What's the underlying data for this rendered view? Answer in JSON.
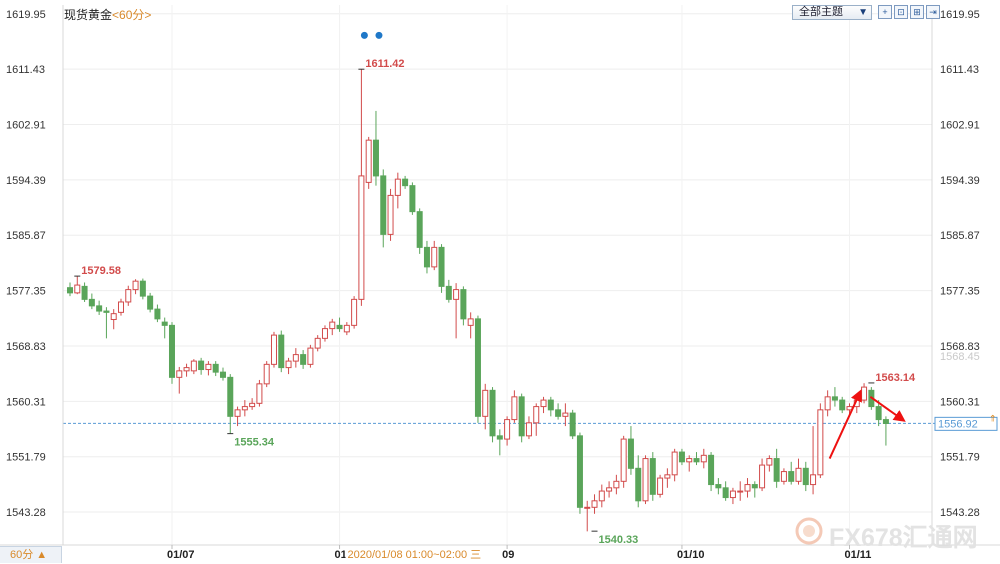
{
  "header": {
    "instrument": "现货黄金",
    "period_label": "<60分>",
    "topic_select": "全部主题"
  },
  "toolbar": {
    "buttons": [
      {
        "icon": "plus-icon",
        "glyph": "+"
      },
      {
        "icon": "fit-icon",
        "glyph": "⊡"
      },
      {
        "icon": "expand-icon",
        "glyph": "⊞"
      },
      {
        "icon": "scroll-end-icon",
        "glyph": "⇥"
      }
    ]
  },
  "footer": {
    "period_select": "60分 ▲",
    "crosshair_time": "2020/01/08 01:00~02:00 三"
  },
  "watermark": {
    "text": "FX678汇通网"
  },
  "chart_data": {
    "type": "candlestick",
    "y_axis": {
      "ticks": [
        1543.28,
        1551.79,
        1560.31,
        1568.83,
        1577.35,
        1585.87,
        1594.39,
        1602.91,
        1611.43,
        1619.95
      ],
      "right_labels": [
        "1543.28",
        "1551.79",
        "1560.31",
        "1568.83",
        "1577.35",
        "1585.87",
        "1594.39",
        "1602.91",
        "1611.43",
        "1619.95"
      ],
      "left_labels": [
        "1543.28",
        "1551.79",
        "1560.31",
        "1568.83",
        "1577.35",
        "1585.87",
        "1594.39",
        "1602.91",
        "1611.43",
        "1619.95"
      ],
      "ylim": [
        1538.2,
        1621.3
      ]
    },
    "x_axis": {
      "date_labels": [
        {
          "label": "01/07",
          "index": 14
        },
        {
          "label": "01",
          "index": 37
        },
        {
          "label": "09",
          "index": 60
        },
        {
          "label": "01/10",
          "index": 84
        },
        {
          "label": "01/11",
          "index": 107
        }
      ]
    },
    "current_price": 1556.92,
    "right_price_badge": "1568.45",
    "extremes": [
      {
        "label": "1579.58",
        "value": 1579.58,
        "index": 1,
        "type": "high"
      },
      {
        "label": "1555.34",
        "value": 1555.34,
        "index": 22,
        "type": "low"
      },
      {
        "label": "1611.42",
        "value": 1611.42,
        "index": 40,
        "type": "high"
      },
      {
        "label": "1540.33",
        "value": 1540.33,
        "index": 72,
        "type": "low"
      },
      {
        "label": "1563.14",
        "value": 1563.14,
        "index": 110,
        "type": "high"
      }
    ],
    "event_markers": [
      {
        "index": 40,
        "value": 1617.4
      },
      {
        "index": 42,
        "value": 1617.4
      }
    ],
    "colors": {
      "up": "#d24b4b",
      "down": "#5aa55a",
      "grid": "#eeeeee",
      "current_line": "#5a9bd5",
      "arrow": "#ee1111"
    },
    "candles": [
      {
        "o": 1577.8,
        "h": 1578.6,
        "l": 1576.5,
        "c": 1577.0
      },
      {
        "o": 1577.0,
        "h": 1579.6,
        "l": 1576.8,
        "c": 1578.2
      },
      {
        "o": 1578.0,
        "h": 1578.6,
        "l": 1575.6,
        "c": 1576.0
      },
      {
        "o": 1576.0,
        "h": 1576.9,
        "l": 1574.5,
        "c": 1575.0
      },
      {
        "o": 1575.0,
        "h": 1575.8,
        "l": 1573.6,
        "c": 1574.2
      },
      {
        "o": 1574.2,
        "h": 1574.8,
        "l": 1570.0,
        "c": 1574.0
      },
      {
        "o": 1572.9,
        "h": 1574.5,
        "l": 1571.4,
        "c": 1573.8
      },
      {
        "o": 1574.0,
        "h": 1576.1,
        "l": 1573.5,
        "c": 1575.6
      },
      {
        "o": 1575.6,
        "h": 1578.1,
        "l": 1575.0,
        "c": 1577.5
      },
      {
        "o": 1577.5,
        "h": 1579.1,
        "l": 1576.8,
        "c": 1578.8
      },
      {
        "o": 1578.8,
        "h": 1579.2,
        "l": 1576.0,
        "c": 1576.5
      },
      {
        "o": 1576.5,
        "h": 1577.0,
        "l": 1574.0,
        "c": 1574.5
      },
      {
        "o": 1574.5,
        "h": 1575.2,
        "l": 1572.5,
        "c": 1573.0
      },
      {
        "o": 1572.5,
        "h": 1573.2,
        "l": 1570.0,
        "c": 1572.0
      },
      {
        "o": 1572.0,
        "h": 1572.5,
        "l": 1563.0,
        "c": 1564.0
      },
      {
        "o": 1564.0,
        "h": 1565.6,
        "l": 1561.5,
        "c": 1565.0
      },
      {
        "o": 1565.0,
        "h": 1566.1,
        "l": 1564.1,
        "c": 1565.5
      },
      {
        "o": 1565.0,
        "h": 1566.8,
        "l": 1564.5,
        "c": 1566.5
      },
      {
        "o": 1566.5,
        "h": 1567.0,
        "l": 1564.4,
        "c": 1565.2
      },
      {
        "o": 1565.2,
        "h": 1566.5,
        "l": 1564.3,
        "c": 1566.0
      },
      {
        "o": 1566.0,
        "h": 1566.5,
        "l": 1564.2,
        "c": 1564.8
      },
      {
        "o": 1564.8,
        "h": 1565.5,
        "l": 1563.5,
        "c": 1564.0
      },
      {
        "o": 1564.0,
        "h": 1564.5,
        "l": 1555.3,
        "c": 1558.0
      },
      {
        "o": 1558.0,
        "h": 1559.5,
        "l": 1556.5,
        "c": 1559.0
      },
      {
        "o": 1559.0,
        "h": 1560.5,
        "l": 1558.0,
        "c": 1559.5
      },
      {
        "o": 1559.5,
        "h": 1560.8,
        "l": 1559.0,
        "c": 1560.0
      },
      {
        "o": 1560.0,
        "h": 1563.6,
        "l": 1559.5,
        "c": 1563.0
      },
      {
        "o": 1563.0,
        "h": 1566.5,
        "l": 1562.5,
        "c": 1566.0
      },
      {
        "o": 1566.0,
        "h": 1571.0,
        "l": 1565.5,
        "c": 1570.5
      },
      {
        "o": 1570.5,
        "h": 1571.2,
        "l": 1564.8,
        "c": 1565.5
      },
      {
        "o": 1565.5,
        "h": 1567.0,
        "l": 1564.5,
        "c": 1566.5
      },
      {
        "o": 1566.5,
        "h": 1568.5,
        "l": 1565.5,
        "c": 1567.5
      },
      {
        "o": 1567.5,
        "h": 1568.2,
        "l": 1565.3,
        "c": 1566.0
      },
      {
        "o": 1566.0,
        "h": 1569.0,
        "l": 1565.5,
        "c": 1568.5
      },
      {
        "o": 1568.5,
        "h": 1570.5,
        "l": 1568.0,
        "c": 1570.0
      },
      {
        "o": 1570.0,
        "h": 1572.0,
        "l": 1569.5,
        "c": 1571.5
      },
      {
        "o": 1571.5,
        "h": 1573.0,
        "l": 1570.5,
        "c": 1572.5
      },
      {
        "o": 1572.0,
        "h": 1573.2,
        "l": 1571.0,
        "c": 1571.5
      },
      {
        "o": 1571.0,
        "h": 1572.5,
        "l": 1570.5,
        "c": 1572.0
      },
      {
        "o": 1572.0,
        "h": 1576.5,
        "l": 1571.5,
        "c": 1576.0
      },
      {
        "o": 1576.0,
        "h": 1611.4,
        "l": 1575.0,
        "c": 1595.0
      },
      {
        "o": 1594.0,
        "h": 1601.0,
        "l": 1593.0,
        "c": 1600.5
      },
      {
        "o": 1600.5,
        "h": 1605.0,
        "l": 1593.5,
        "c": 1595.0
      },
      {
        "o": 1595.0,
        "h": 1596.0,
        "l": 1584.0,
        "c": 1586.0
      },
      {
        "o": 1586.0,
        "h": 1593.0,
        "l": 1585.0,
        "c": 1592.0
      },
      {
        "o": 1592.0,
        "h": 1595.5,
        "l": 1590.0,
        "c": 1594.5
      },
      {
        "o": 1594.5,
        "h": 1595.0,
        "l": 1593.0,
        "c": 1593.5
      },
      {
        "o": 1593.5,
        "h": 1594.0,
        "l": 1589.0,
        "c": 1589.5
      },
      {
        "o": 1589.5,
        "h": 1590.0,
        "l": 1583.0,
        "c": 1584.0
      },
      {
        "o": 1584.0,
        "h": 1585.0,
        "l": 1580.0,
        "c": 1581.0
      },
      {
        "o": 1581.0,
        "h": 1585.0,
        "l": 1580.5,
        "c": 1584.0
      },
      {
        "o": 1584.0,
        "h": 1584.5,
        "l": 1577.0,
        "c": 1578.0
      },
      {
        "o": 1578.0,
        "h": 1579.0,
        "l": 1575.5,
        "c": 1576.0
      },
      {
        "o": 1576.0,
        "h": 1578.5,
        "l": 1570.0,
        "c": 1577.5
      },
      {
        "o": 1577.5,
        "h": 1578.0,
        "l": 1572.0,
        "c": 1573.0
      },
      {
        "o": 1572.0,
        "h": 1574.0,
        "l": 1570.0,
        "c": 1573.0
      },
      {
        "o": 1573.0,
        "h": 1573.5,
        "l": 1557.0,
        "c": 1558.0
      },
      {
        "o": 1558.0,
        "h": 1563.0,
        "l": 1556.0,
        "c": 1562.0
      },
      {
        "o": 1562.0,
        "h": 1562.5,
        "l": 1554.0,
        "c": 1555.0
      },
      {
        "o": 1555.0,
        "h": 1556.0,
        "l": 1552.0,
        "c": 1554.5
      },
      {
        "o": 1554.5,
        "h": 1558.0,
        "l": 1553.5,
        "c": 1557.5
      },
      {
        "o": 1557.5,
        "h": 1562.0,
        "l": 1557.0,
        "c": 1561.0
      },
      {
        "o": 1561.0,
        "h": 1561.5,
        "l": 1554.0,
        "c": 1555.0
      },
      {
        "o": 1555.0,
        "h": 1558.0,
        "l": 1554.5,
        "c": 1557.0
      },
      {
        "o": 1557.0,
        "h": 1560.0,
        "l": 1555.0,
        "c": 1559.5
      },
      {
        "o": 1559.5,
        "h": 1561.0,
        "l": 1558.5,
        "c": 1560.5
      },
      {
        "o": 1560.5,
        "h": 1561.0,
        "l": 1558.0,
        "c": 1559.0
      },
      {
        "o": 1559.0,
        "h": 1560.0,
        "l": 1557.5,
        "c": 1558.0
      },
      {
        "o": 1558.0,
        "h": 1560.0,
        "l": 1556.5,
        "c": 1558.5
      },
      {
        "o": 1558.5,
        "h": 1559.0,
        "l": 1554.5,
        "c": 1555.0
      },
      {
        "o": 1555.0,
        "h": 1555.5,
        "l": 1543.0,
        "c": 1544.0
      },
      {
        "o": 1544.0,
        "h": 1545.0,
        "l": 1540.3,
        "c": 1544.0
      },
      {
        "o": 1544.0,
        "h": 1546.0,
        "l": 1543.0,
        "c": 1545.0
      },
      {
        "o": 1545.0,
        "h": 1547.5,
        "l": 1544.0,
        "c": 1546.5
      },
      {
        "o": 1546.5,
        "h": 1548.0,
        "l": 1545.5,
        "c": 1547.0
      },
      {
        "o": 1547.0,
        "h": 1549.0,
        "l": 1546.0,
        "c": 1548.0
      },
      {
        "o": 1548.0,
        "h": 1555.0,
        "l": 1547.0,
        "c": 1554.5
      },
      {
        "o": 1554.5,
        "h": 1556.5,
        "l": 1549.0,
        "c": 1550.0
      },
      {
        "o": 1550.0,
        "h": 1552.0,
        "l": 1544.0,
        "c": 1545.0
      },
      {
        "o": 1545.0,
        "h": 1552.0,
        "l": 1544.5,
        "c": 1551.5
      },
      {
        "o": 1551.5,
        "h": 1552.5,
        "l": 1545.0,
        "c": 1546.0
      },
      {
        "o": 1546.0,
        "h": 1549.0,
        "l": 1545.5,
        "c": 1548.5
      },
      {
        "o": 1548.5,
        "h": 1550.0,
        "l": 1547.0,
        "c": 1549.0
      },
      {
        "o": 1549.0,
        "h": 1553.0,
        "l": 1548.0,
        "c": 1552.5
      },
      {
        "o": 1552.5,
        "h": 1553.0,
        "l": 1550.5,
        "c": 1551.0
      },
      {
        "o": 1551.0,
        "h": 1552.0,
        "l": 1549.5,
        "c": 1551.5
      },
      {
        "o": 1551.5,
        "h": 1552.5,
        "l": 1550.5,
        "c": 1551.0
      },
      {
        "o": 1551.0,
        "h": 1553.0,
        "l": 1550.0,
        "c": 1552.0
      },
      {
        "o": 1552.0,
        "h": 1552.5,
        "l": 1546.5,
        "c": 1547.5
      },
      {
        "o": 1547.5,
        "h": 1548.5,
        "l": 1546.0,
        "c": 1547.0
      },
      {
        "o": 1547.0,
        "h": 1548.0,
        "l": 1545.0,
        "c": 1545.5
      },
      {
        "o": 1545.5,
        "h": 1547.0,
        "l": 1544.5,
        "c": 1546.5
      },
      {
        "o": 1546.5,
        "h": 1548.0,
        "l": 1545.0,
        "c": 1546.5
      },
      {
        "o": 1546.5,
        "h": 1548.5,
        "l": 1545.5,
        "c": 1547.5
      },
      {
        "o": 1547.5,
        "h": 1548.0,
        "l": 1545.5,
        "c": 1547.0
      },
      {
        "o": 1547.0,
        "h": 1551.5,
        "l": 1546.5,
        "c": 1550.5
      },
      {
        "o": 1550.5,
        "h": 1552.0,
        "l": 1549.5,
        "c": 1551.5
      },
      {
        "o": 1551.5,
        "h": 1553.0,
        "l": 1547.0,
        "c": 1548.0
      },
      {
        "o": 1548.0,
        "h": 1550.0,
        "l": 1547.5,
        "c": 1549.5
      },
      {
        "o": 1549.5,
        "h": 1551.0,
        "l": 1547.5,
        "c": 1548.0
      },
      {
        "o": 1548.0,
        "h": 1551.5,
        "l": 1547.5,
        "c": 1550.0
      },
      {
        "o": 1550.0,
        "h": 1551.0,
        "l": 1546.5,
        "c": 1547.5
      },
      {
        "o": 1547.5,
        "h": 1556.5,
        "l": 1546.0,
        "c": 1549.0
      },
      {
        "o": 1549.0,
        "h": 1560.0,
        "l": 1548.5,
        "c": 1559.0
      },
      {
        "o": 1559.0,
        "h": 1562.0,
        "l": 1558.0,
        "c": 1561.0
      },
      {
        "o": 1561.0,
        "h": 1562.5,
        "l": 1559.5,
        "c": 1560.5
      },
      {
        "o": 1560.5,
        "h": 1561.0,
        "l": 1558.5,
        "c": 1559.0
      },
      {
        "o": 1559.0,
        "h": 1560.0,
        "l": 1558.0,
        "c": 1559.5
      },
      {
        "o": 1559.5,
        "h": 1561.0,
        "l": 1558.5,
        "c": 1560.5
      },
      {
        "o": 1560.5,
        "h": 1563.1,
        "l": 1560.0,
        "c": 1562.5
      },
      {
        "o": 1562.0,
        "h": 1562.5,
        "l": 1559.0,
        "c": 1559.5
      },
      {
        "o": 1559.5,
        "h": 1560.5,
        "l": 1556.5,
        "c": 1557.5
      },
      {
        "o": 1557.5,
        "h": 1558.0,
        "l": 1553.5,
        "c": 1556.9
      }
    ]
  }
}
